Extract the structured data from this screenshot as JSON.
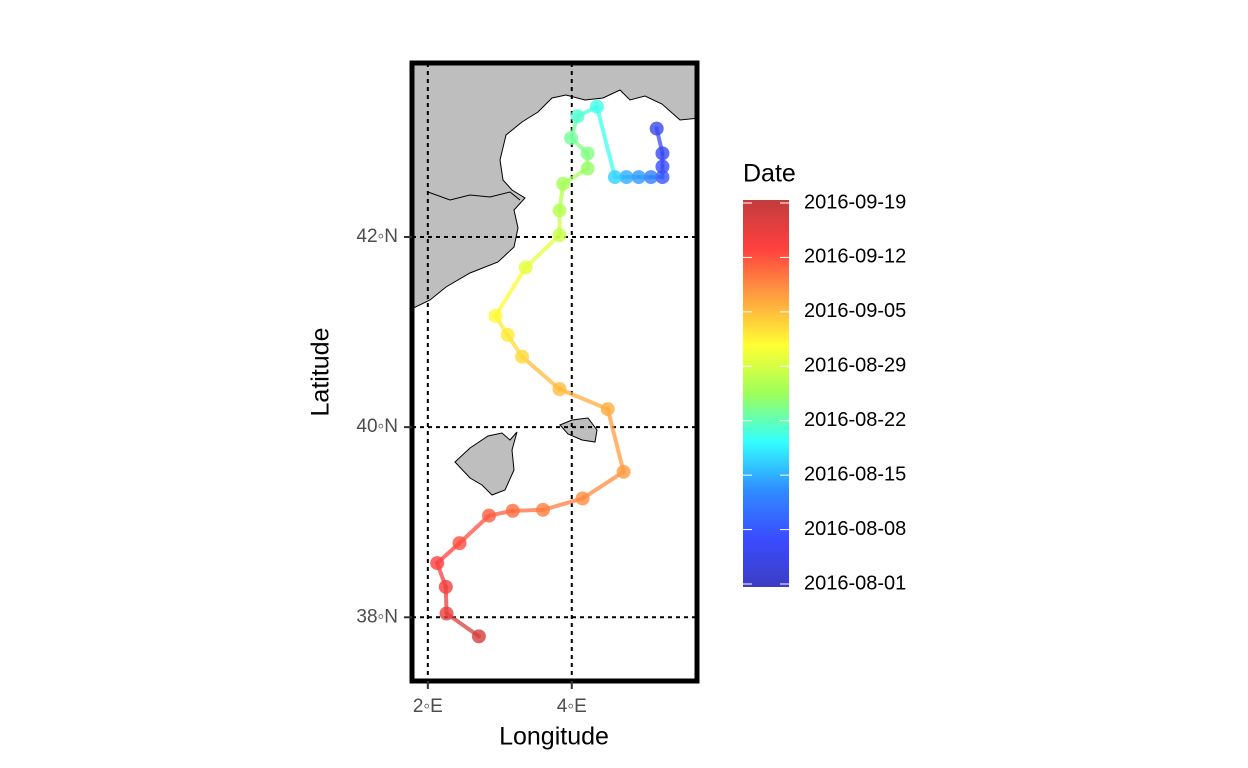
{
  "chart_data": {
    "type": "track",
    "x_label": "Longitude",
    "y_label": "Latitude",
    "legend_title": "Date",
    "xlim": [
      1.78,
      5.74
    ],
    "ylim": [
      37.33,
      43.83
    ],
    "xticks": [
      {
        "value": 2,
        "label": "2◦E"
      },
      {
        "value": 4,
        "label": "4◦E"
      }
    ],
    "yticks": [
      {
        "value": 38,
        "label": "38◦N"
      },
      {
        "value": 40,
        "label": "40◦N"
      },
      {
        "value": 42,
        "label": "42◦N"
      }
    ],
    "grid": true,
    "x": [
      5.18,
      5.26,
      5.26,
      5.26,
      5.1,
      4.93,
      4.76,
      4.6,
      4.35,
      4.08,
      3.99,
      4.22,
      4.22,
      3.88,
      3.83,
      3.83,
      3.36,
      2.94,
      3.11,
      3.31,
      3.83,
      4.5,
      4.72,
      4.15,
      3.6,
      3.18,
      2.85,
      2.44,
      2.13,
      2.25,
      2.26,
      2.71
    ],
    "values": [
      43.14,
      42.88,
      42.74,
      42.63,
      42.63,
      42.63,
      42.63,
      42.63,
      43.37,
      43.27,
      43.04,
      42.88,
      42.72,
      42.56,
      42.28,
      42.02,
      41.68,
      41.17,
      40.97,
      40.74,
      40.4,
      40.19,
      39.53,
      39.25,
      39.13,
      39.12,
      39.07,
      38.78,
      38.57,
      38.32,
      38.04,
      37.8
    ],
    "dates": [
      "2016-08-05",
      "2016-08-06",
      "2016-08-07",
      "2016-08-08",
      "2016-08-12",
      "2016-08-14",
      "2016-08-15",
      "2016-08-17",
      "2016-08-20",
      "2016-08-21",
      "2016-08-23",
      "2016-08-24",
      "2016-08-25",
      "2016-08-26",
      "2016-08-27",
      "2016-08-28",
      "2016-08-30",
      "2016-09-01",
      "2016-09-02",
      "2016-09-03",
      "2016-09-05",
      "2016-09-06",
      "2016-09-07",
      "2016-09-08",
      "2016-09-09",
      "2016-09-10",
      "2016-09-11",
      "2016-09-12",
      "2016-09-13",
      "2016-09-14",
      "2016-09-15",
      "2016-09-17"
    ],
    "color_ticks": [
      "2016-08-01",
      "2016-08-08",
      "2016-08-15",
      "2016-08-22",
      "2016-08-29",
      "2016-09-05",
      "2016-09-12",
      "2016-09-19"
    ],
    "colormap": [
      "#3d3dc4",
      "#3a4cff",
      "#2f8cff",
      "#33ffff",
      "#9dff5a",
      "#ffff33",
      "#ffa040",
      "#ff4040",
      "#c23c3c"
    ]
  }
}
